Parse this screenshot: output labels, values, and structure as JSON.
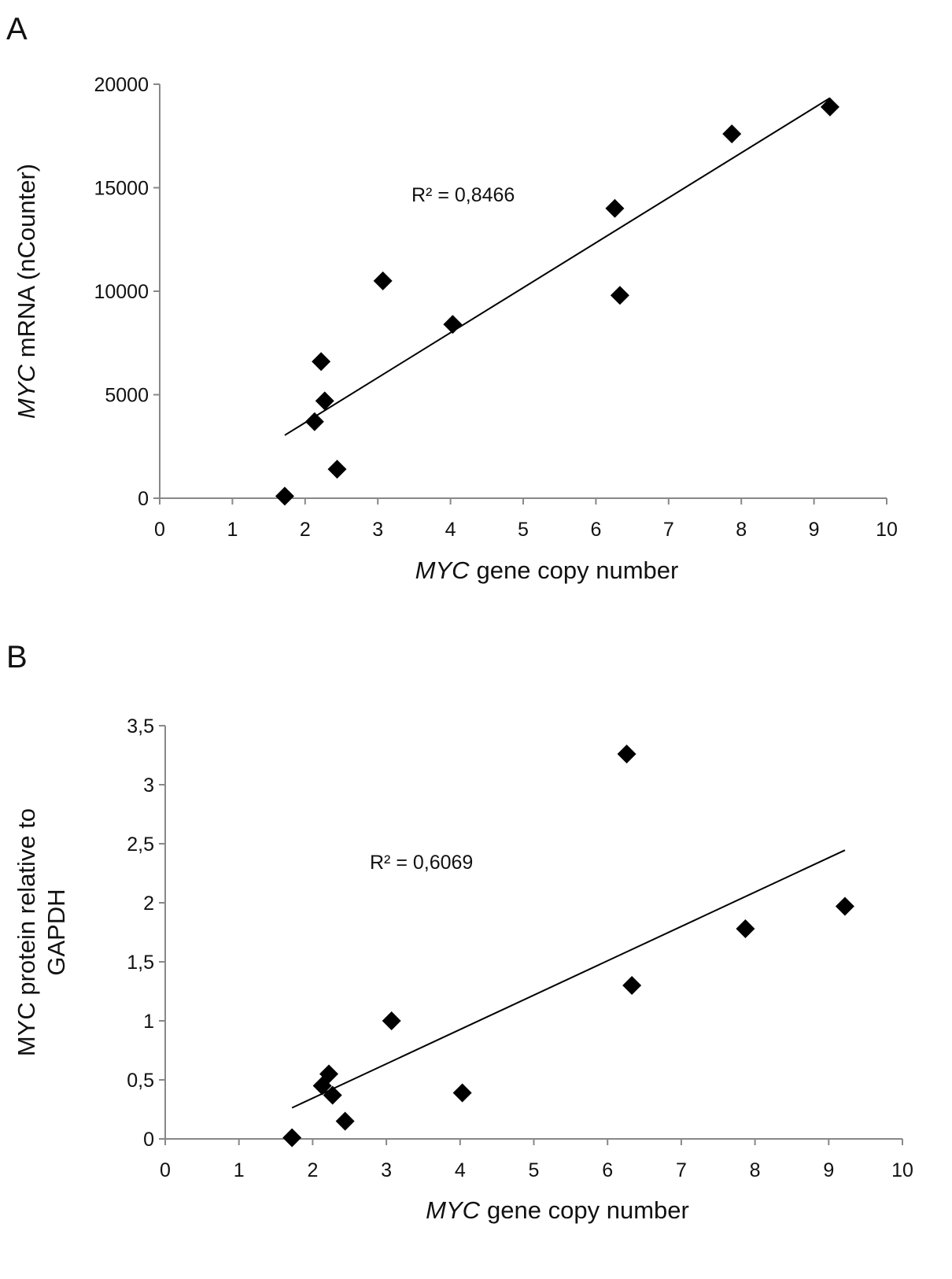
{
  "chart_data": [
    {
      "type": "scatter",
      "panel": "A",
      "x": [
        1.72,
        2.13,
        2.22,
        2.27,
        2.44,
        3.07,
        4.03,
        6.26,
        6.33,
        7.87,
        9.22
      ],
      "y": [
        100,
        3700,
        6600,
        4700,
        1400,
        10500,
        8400,
        14000,
        9800,
        17600,
        18900
      ],
      "color": "#000000",
      "trendline": true,
      "annotation": "R² = 0,8466",
      "xlabel": {
        "italic": "MYC",
        "text": "gene copy number"
      },
      "ylabel": {
        "italic": "MYC",
        "text": "mRNA (nCounter)"
      },
      "xlim": [
        0,
        10
      ],
      "xticks": [
        0,
        1,
        2,
        3,
        4,
        5,
        6,
        7,
        8,
        9,
        10
      ],
      "ylim": [
        0,
        20000
      ],
      "yticks": [
        0,
        5000,
        10000,
        15000,
        20000
      ],
      "grid": false
    },
    {
      "type": "scatter",
      "panel": "B",
      "x": [
        1.72,
        2.13,
        2.22,
        2.27,
        2.44,
        3.07,
        4.03,
        6.26,
        6.33,
        7.87,
        9.22
      ],
      "y": [
        0.01,
        0.45,
        0.55,
        0.37,
        0.15,
        1.0,
        0.39,
        3.26,
        1.3,
        1.78,
        1.97
      ],
      "color": "#000000",
      "trendline": true,
      "annotation": "R² = 0,6069",
      "xlabel": {
        "italic": "MYC",
        "text": "gene copy number"
      },
      "ylabel": {
        "lines": [
          "MYC protein relative to",
          "GAPDH"
        ]
      },
      "xlim": [
        0,
        10
      ],
      "xticks": [
        0,
        1,
        2,
        3,
        4,
        5,
        6,
        7,
        8,
        9,
        10
      ],
      "ylim": [
        0,
        3.5
      ],
      "yticks": [
        0,
        {
          "value": 0.5,
          "label": "0,5"
        },
        1,
        {
          "value": 1.5,
          "label": "1,5"
        },
        2,
        {
          "value": 2.5,
          "label": "2,5"
        },
        3,
        {
          "value": 3.5,
          "label": "3,5"
        }
      ],
      "grid": false
    }
  ]
}
